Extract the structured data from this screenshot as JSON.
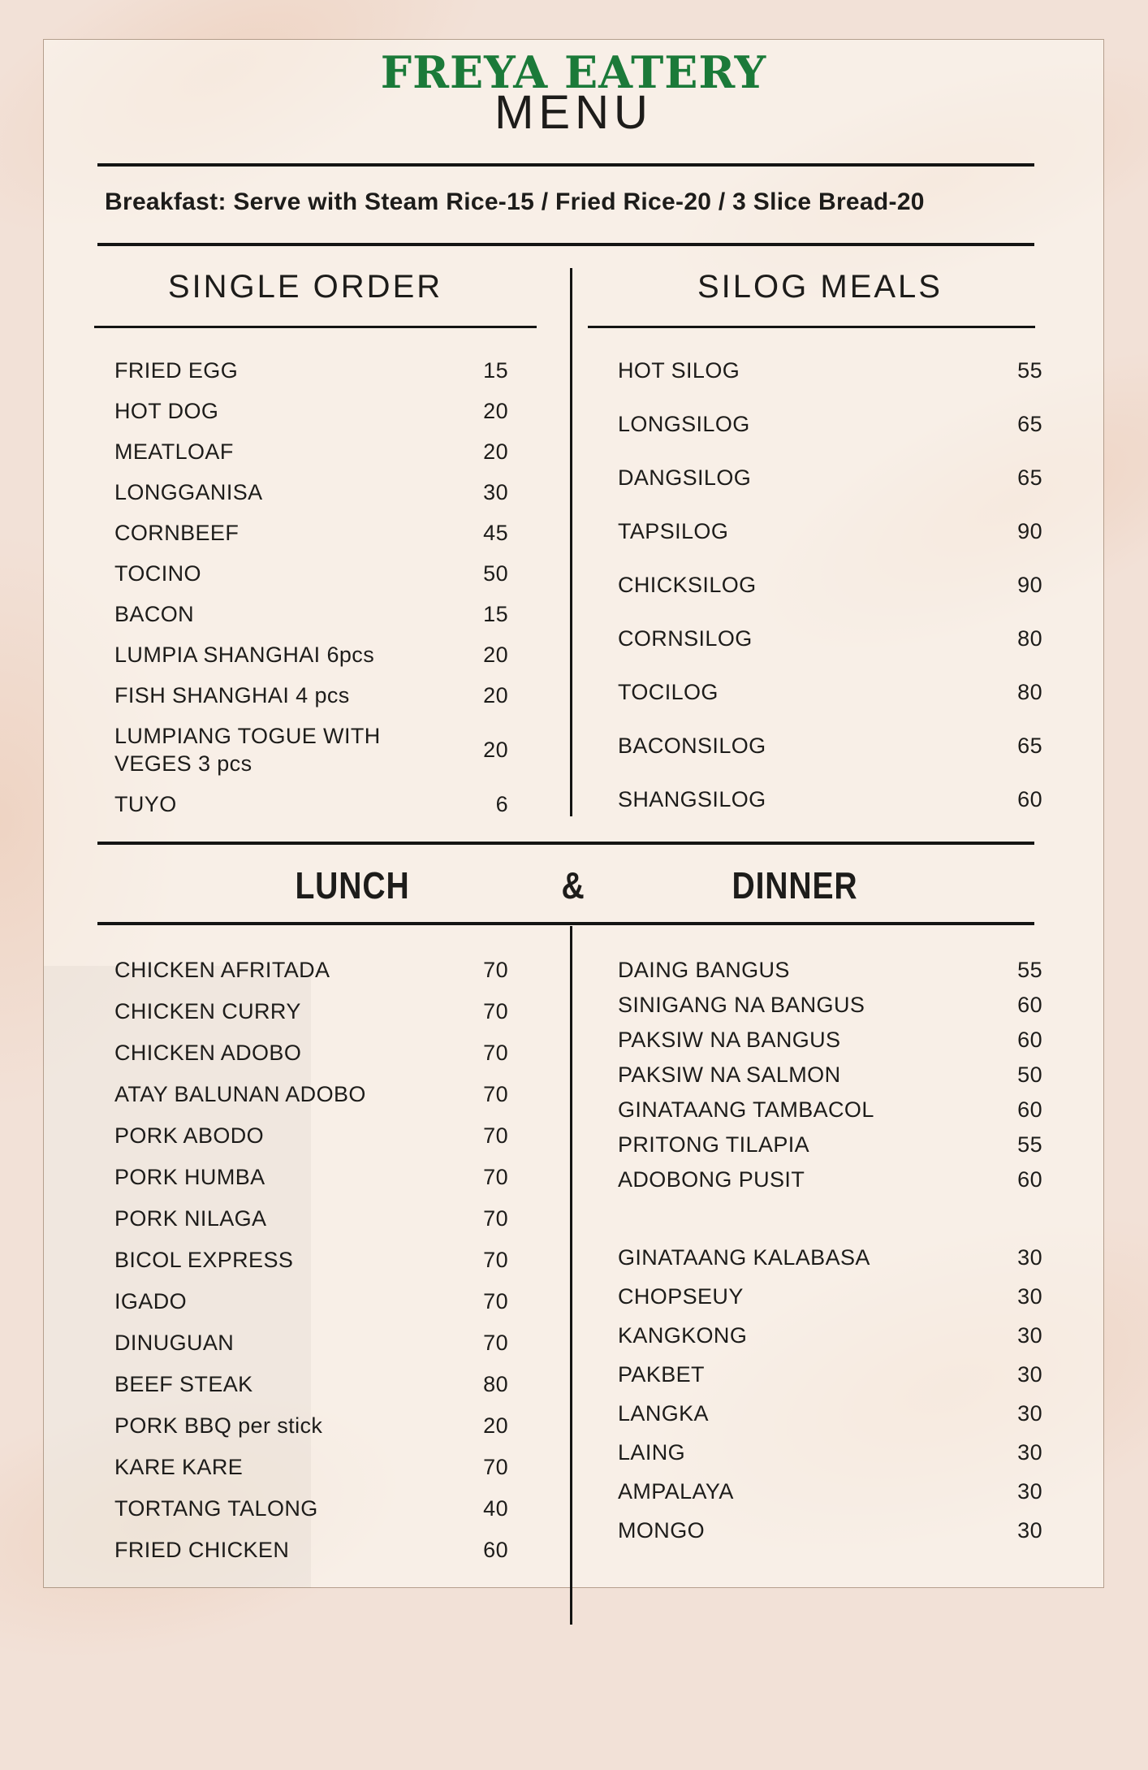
{
  "page": {
    "brand": "FREYA EATERY",
    "title": "MENU",
    "breakfast_note": "Breakfast: Serve with Steam Rice-15 / Fried Rice-20 / 3 Slice Bread-20",
    "colors": {
      "brand_green": "#1b7a39",
      "text": "#1d1c1a",
      "page_bg": "#f2e1d7",
      "card_border": "rgba(125,92,67,0.55)"
    }
  },
  "single_order": {
    "title": "SINGLE ORDER",
    "items": [
      {
        "name": "FRIED EGG",
        "price": "15"
      },
      {
        "name": "HOT DOG",
        "price": "20"
      },
      {
        "name": "MEATLOAF",
        "price": "20"
      },
      {
        "name": "LONGGANISA",
        "price": "30"
      },
      {
        "name": "CORNBEEF",
        "price": "45"
      },
      {
        "name": "TOCINO",
        "price": "50"
      },
      {
        "name": "BACON",
        "price": "15"
      },
      {
        "name": "LUMPIA SHANGHAI 6pcs",
        "price": "20"
      },
      {
        "name": "FISH SHANGHAI 4 pcs",
        "price": "20"
      },
      {
        "name": "LUMPIANG TOGUE WITH VEGES 3 pcs",
        "price": "20"
      },
      {
        "name": "TUYO",
        "price": "6"
      }
    ]
  },
  "silog_meals": {
    "title": "SILOG MEALS",
    "items": [
      {
        "name": "HOT SILOG",
        "price": "55"
      },
      {
        "name": "LONGSILOG",
        "price": "65"
      },
      {
        "name": "DANGSILOG",
        "price": "65"
      },
      {
        "name": "TAPSILOG",
        "price": "90"
      },
      {
        "name": "CHICKSILOG",
        "price": "90"
      },
      {
        "name": "CORNSILOG",
        "price": "80"
      },
      {
        "name": "TOCILOG",
        "price": "80"
      },
      {
        "name": "BACONSILOG",
        "price": "65"
      },
      {
        "name": "SHANGSILOG",
        "price": "60"
      }
    ]
  },
  "lunch_dinner": {
    "left_title": "LUNCH",
    "ampersand": "&",
    "right_title": "DINNER",
    "lunch_items": [
      {
        "name": "CHICKEN AFRITADA",
        "price": "70"
      },
      {
        "name": "CHICKEN CURRY",
        "price": "70"
      },
      {
        "name": "CHICKEN ADOBO",
        "price": "70"
      },
      {
        "name": "ATAY BALUNAN ADOBO",
        "price": "70"
      },
      {
        "name": "PORK ABODO",
        "price": "70"
      },
      {
        "name": "PORK HUMBA",
        "price": "70"
      },
      {
        "name": "PORK NILAGA",
        "price": "70"
      },
      {
        "name": "BICOL EXPRESS",
        "price": "70"
      },
      {
        "name": "IGADO",
        "price": "70"
      },
      {
        "name": "DINUGUAN",
        "price": "70"
      },
      {
        "name": "BEEF STEAK",
        "price": "80"
      },
      {
        "name": "PORK BBQ per stick",
        "price": "20"
      },
      {
        "name": "KARE KARE",
        "price": "70"
      },
      {
        "name": "TORTANG TALONG",
        "price": "40"
      },
      {
        "name": "FRIED CHICKEN",
        "price": "60"
      }
    ],
    "dinner_seafood_items": [
      {
        "name": "DAING BANGUS",
        "price": "55"
      },
      {
        "name": "SINIGANG NA BANGUS",
        "price": "60"
      },
      {
        "name": "PAKSIW NA BANGUS",
        "price": "60"
      },
      {
        "name": "PAKSIW NA SALMON",
        "price": "50"
      },
      {
        "name": "GINATAANG TAMBACOL",
        "price": "60"
      },
      {
        "name": "PRITONG TILAPIA",
        "price": "55"
      },
      {
        "name": "ADOBONG PUSIT",
        "price": "60"
      }
    ],
    "dinner_vegetable_items": [
      {
        "name": "GINATAANG KALABASA",
        "price": "30"
      },
      {
        "name": "CHOPSEUY",
        "price": "30"
      },
      {
        "name": "KANGKONG",
        "price": "30"
      },
      {
        "name": "PAKBET",
        "price": "30"
      },
      {
        "name": "LANGKA",
        "price": "30"
      },
      {
        "name": "LAING",
        "price": "30"
      },
      {
        "name": "AMPALAYA",
        "price": "30"
      },
      {
        "name": "MONGO",
        "price": "30"
      }
    ]
  }
}
